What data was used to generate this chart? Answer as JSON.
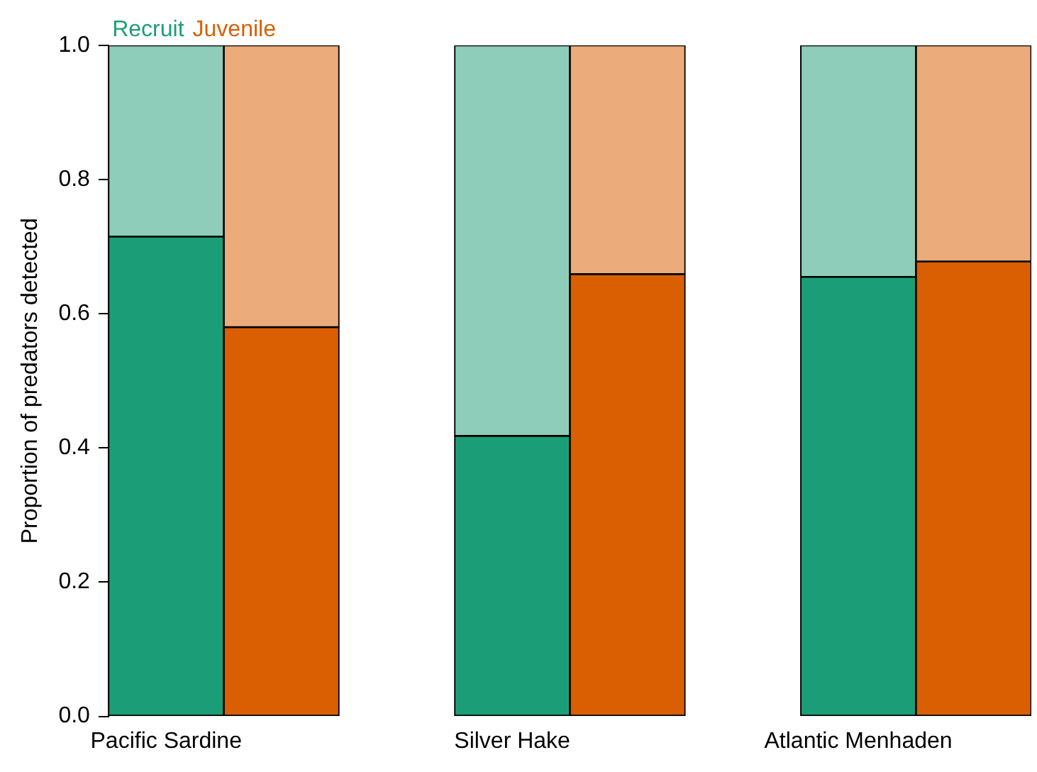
{
  "chart_data": {
    "type": "bar",
    "stacked": true,
    "ylabel": "Proportion of predators detected",
    "categories": [
      "Pacific Sardine",
      null,
      null,
      "Silver Hake",
      null,
      null,
      "Atlantic Menhaden",
      null
    ],
    "series": [
      {
        "name": "Recruit",
        "color": "#1b9e77",
        "values": [
          0.715,
          null,
          null,
          0.418,
          null,
          null,
          0.655,
          null
        ]
      },
      {
        "color": "#8dcdb9",
        "values": [
          0.285,
          null,
          null,
          0.582,
          null,
          null,
          0.345,
          null
        ]
      },
      {
        "name": "Juvenile",
        "color": "#d95f02",
        "values": [
          null,
          0.58,
          null,
          null,
          0.659,
          null,
          null,
          0.678
        ]
      },
      {
        "color": "#ecab7b",
        "values": [
          null,
          0.42,
          null,
          null,
          0.341,
          null,
          null,
          0.322
        ]
      }
    ],
    "ylim": [
      0,
      1
    ],
    "yticks": [
      {
        "value": 0,
        "label": "0.0"
      },
      {
        "value": 0.2,
        "label": "0.2"
      },
      {
        "value": 0.4,
        "label": "0.4"
      },
      {
        "value": 0.6,
        "label": "0.6"
      },
      {
        "value": 0.8,
        "label": "0.8"
      },
      {
        "value": 1,
        "label": "1.0"
      }
    ],
    "grid": false,
    "legend": "top left"
  }
}
